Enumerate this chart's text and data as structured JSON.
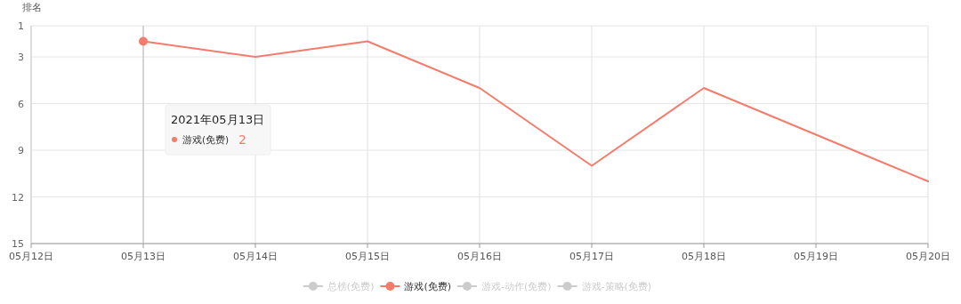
{
  "chart_data": {
    "type": "line",
    "ylabel": "排名",
    "x": [
      "2021-05-13",
      "2021-05-14",
      "2021-05-15",
      "2021-05-16",
      "2021-05-17",
      "2021-05-18",
      "2021-05-19",
      "2021-05-20"
    ],
    "series": [
      {
        "name": "总榜(免费)",
        "color": "#cccccc",
        "values": [
          null,
          null,
          null,
          null,
          null,
          null,
          null,
          null
        ]
      },
      {
        "name": "游戏(免费)",
        "color": "#f47c6c",
        "values": [
          2,
          3,
          2,
          5,
          10,
          5,
          8,
          11
        ]
      },
      {
        "name": "游戏-动作(免费)",
        "color": "#cccccc",
        "values": [
          null,
          null,
          null,
          null,
          null,
          null,
          null,
          null
        ]
      },
      {
        "name": "游戏-策略(免费)",
        "color": "#cccccc",
        "values": [
          null,
          null,
          null,
          null,
          null,
          null,
          null,
          null
        ]
      }
    ],
    "xlim": [
      "2021-05-12",
      "2021-05-20"
    ],
    "xticks": [
      {
        "value": "2021-05-12",
        "label": "05月12日"
      },
      {
        "value": "2021-05-13",
        "label": "05月13日"
      },
      {
        "value": "2021-05-14",
        "label": "05月14日"
      },
      {
        "value": "2021-05-15",
        "label": "05月15日"
      },
      {
        "value": "2021-05-16",
        "label": "05月16日"
      },
      {
        "value": "2021-05-17",
        "label": "05月17日"
      },
      {
        "value": "2021-05-18",
        "label": "05月18日"
      },
      {
        "value": "2021-05-19",
        "label": "05月19日"
      },
      {
        "value": "2021-05-20",
        "label": "05月20日"
      }
    ],
    "ylim": [
      15,
      1
    ],
    "yticks": [
      1,
      3,
      6,
      9,
      12,
      15
    ],
    "annotations": [
      "2021年05月13日",
      "2"
    ],
    "ref_lines": [
      {
        "axis": "x",
        "value": "2021-05-13",
        "color": "#bbbbbb"
      }
    ],
    "grid": true,
    "legend": "bottom",
    "marker": "none",
    "line_style": "solid"
  }
}
